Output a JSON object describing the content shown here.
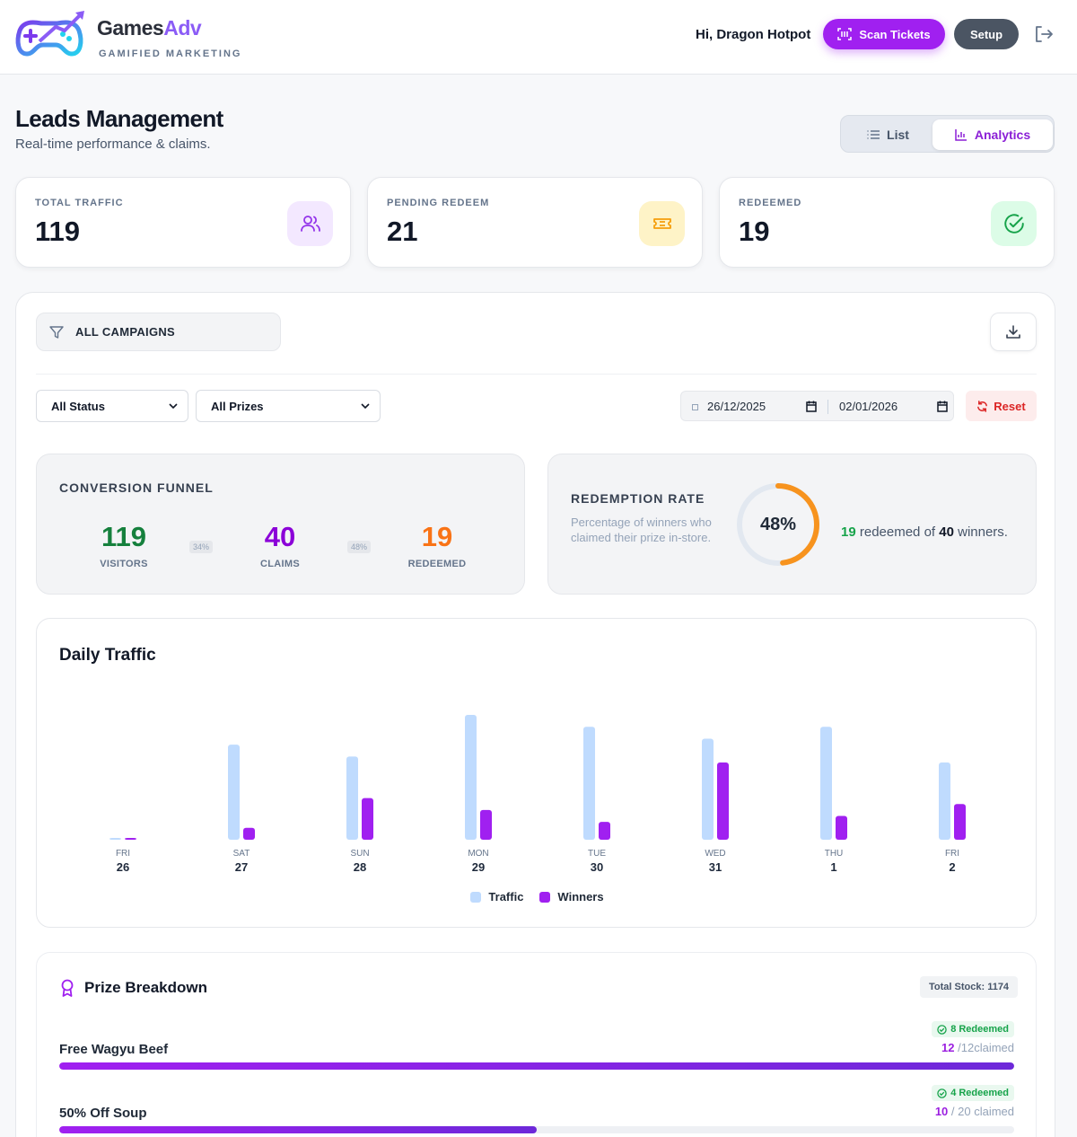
{
  "header": {
    "brand_main": "Games",
    "brand_accent": "Adv",
    "tagline": "GAMIFIED MARKETING",
    "greeting": "Hi, Dragon Hotpot",
    "scan_label": "Scan Tickets",
    "setup_label": "Setup"
  },
  "page": {
    "title": "Leads Management",
    "subtitle": "Real-time performance & claims.",
    "view_list": "List",
    "view_analytics": "Analytics"
  },
  "stats": [
    {
      "label": "TOTAL TRAFFIC",
      "value": "119",
      "icon": "users-icon",
      "bg": "#f3e8ff",
      "color": "#9333ea"
    },
    {
      "label": "PENDING REDEEM",
      "value": "21",
      "icon": "ticket-icon",
      "bg": "#fef3c7",
      "color": "#f59e0b"
    },
    {
      "label": "REDEEMED",
      "value": "19",
      "icon": "check-circle-icon",
      "bg": "#dcfce7",
      "color": "#16a34a"
    }
  ],
  "filters": {
    "campaign": "ALL CAMPAIGNS",
    "status": "All Status",
    "prizes": "All Prizes",
    "date_from": "26/12/2025",
    "date_to": "02/01/2026",
    "reset": "Reset"
  },
  "funnel": {
    "title": "CONVERSION FUNNEL",
    "visitors": "119",
    "visitors_label": "VISITORS",
    "claims": "40",
    "claims_label": "CLAIMS",
    "redeemed": "19",
    "redeemed_label": "REDEEMED",
    "pct1": "34%",
    "pct2": "48%"
  },
  "redemption": {
    "title": "REDEMPTION RATE",
    "description": "Percentage of winners who claimed their prize in-store.",
    "rate_label": "48%",
    "rate": 0.48,
    "redeemed": "19",
    "mid": " redeemed of ",
    "winners": "40",
    "tail": " winners."
  },
  "daily_traffic": {
    "title": "Daily Traffic"
  },
  "chart_data": {
    "type": "bar",
    "title": "Daily Traffic",
    "categories": [
      "FRI 26",
      "SAT 27",
      "SUN 28",
      "MON 29",
      "TUE 30",
      "WED 31",
      "THU 1",
      "FRI 2"
    ],
    "days": [
      "FRI",
      "SAT",
      "SUN",
      "MON",
      "TUE",
      "WED",
      "THU",
      "FRI"
    ],
    "dates": [
      "26",
      "27",
      "28",
      "29",
      "30",
      "31",
      "1",
      "2"
    ],
    "series": [
      {
        "name": "Traffic",
        "color": "#bfdbfe",
        "values": [
          0.3,
          16,
          14,
          21,
          19,
          17,
          19,
          13
        ]
      },
      {
        "name": "Winners",
        "color": "#a020f0",
        "values": [
          0.3,
          2,
          7,
          5,
          3,
          13,
          4,
          6
        ]
      }
    ],
    "ylim": [
      0,
      21
    ],
    "legend": "bottom",
    "grid": false
  },
  "prize_breakdown": {
    "title": "Prize Breakdown",
    "total_stock": "Total Stock: 1174",
    "items": [
      {
        "name": "Free Wagyu Beef",
        "redeemed": "8 Redeemed",
        "claimed": "12",
        "total": " /12claimed",
        "fill": 1.0
      },
      {
        "name": "50% Off Soup",
        "redeemed": "4 Redeemed",
        "claimed": "10",
        "total": " / 20 claimed",
        "fill": 0.5
      }
    ]
  }
}
